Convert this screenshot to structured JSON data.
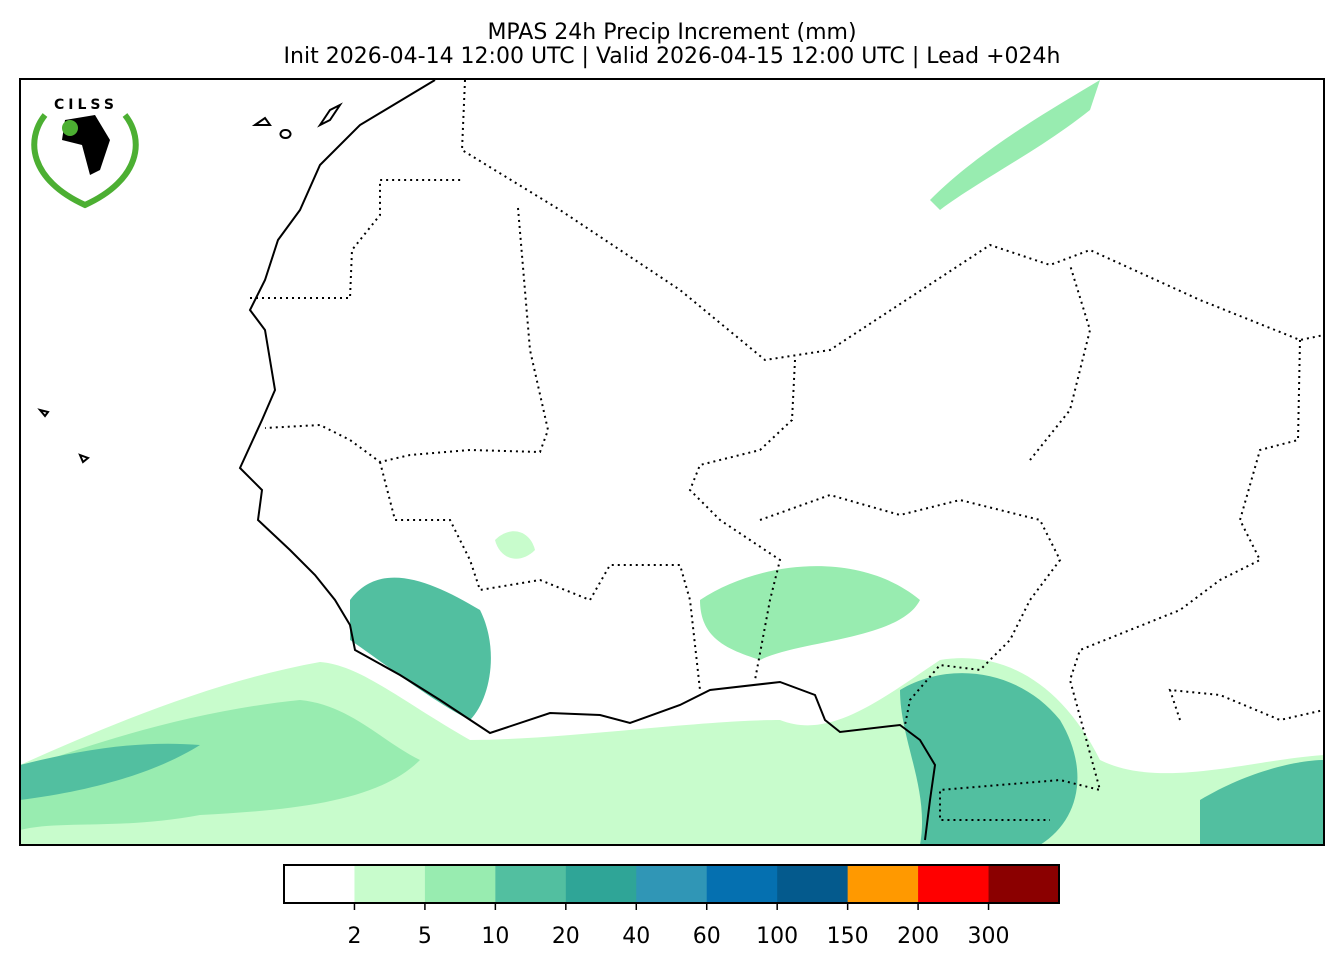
{
  "title": "MPAS 24h Precip Increment (mm)",
  "subtitle": "Init 2026-04-14 12:00 UTC | Valid 2026-04-15 12:00 UTC | Lead +024h",
  "logo": {
    "text": "CILSS"
  },
  "colorbar": {
    "colors": [
      "#ffffff",
      "#c8fccc",
      "#98ecb0",
      "#52bfa0",
      "#2fa597",
      "#3096b6",
      "#0570b0",
      "#045a8d",
      "#ff9900",
      "#ff0000",
      "#8b0000"
    ],
    "ticks": [
      2,
      5,
      10,
      20,
      40,
      60,
      100,
      150,
      200,
      300
    ]
  }
}
